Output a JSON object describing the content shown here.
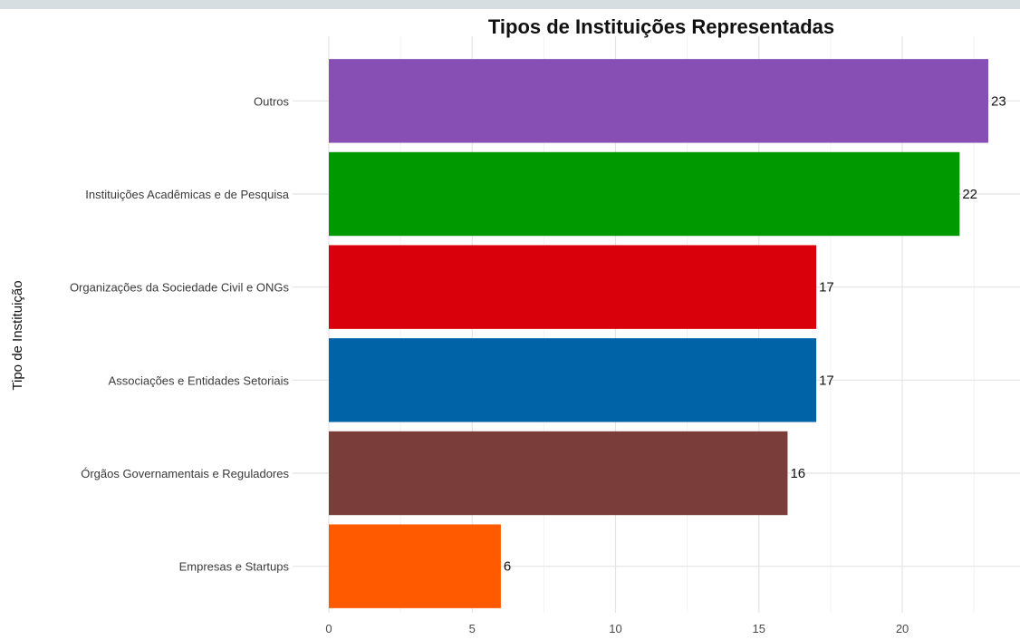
{
  "chart_data": {
    "type": "bar",
    "orientation": "horizontal",
    "title": "Tipos de Instituições Representadas",
    "xlabel": "",
    "ylabel": "Tipo de Instituição",
    "categories": [
      "Outros",
      "Instituições Acadêmicas e de Pesquisa",
      "Organizações da Sociedade Civil e ONGs",
      "Associações e Entidades Setoriais",
      "Órgãos Governamentais e Reguladores",
      "Empresas e Startups"
    ],
    "values": [
      23,
      22,
      17,
      17,
      16,
      6
    ],
    "value_labels": [
      "23",
      "22",
      "17",
      "17",
      "16",
      "6"
    ],
    "colors": [
      "#874fb3",
      "#009900",
      "#d9000b",
      "#0063a8",
      "#7b3d39",
      "#ff5a00"
    ],
    "xticks": [
      0,
      5,
      10,
      15,
      20
    ],
    "xtick_labels": [
      "0",
      "5",
      "10",
      "15",
      "20"
    ],
    "xlim": [
      0,
      23.6
    ],
    "grid": true,
    "legend": "none"
  }
}
